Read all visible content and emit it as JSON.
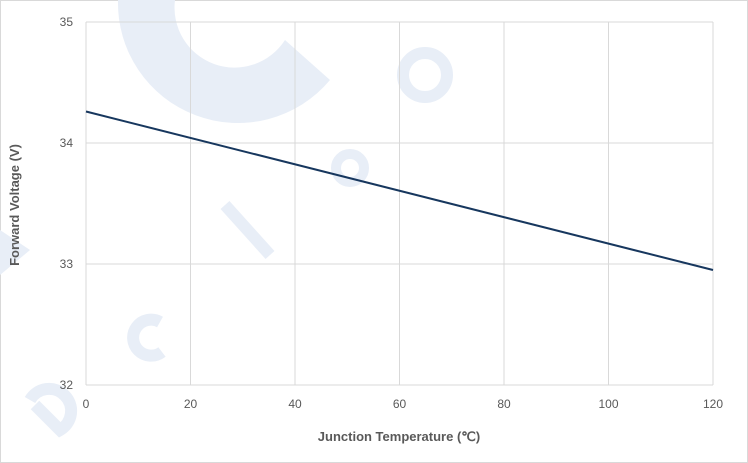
{
  "chart_data": {
    "type": "line",
    "title": "",
    "xlabel": "Junction Temperature (℃)",
    "ylabel": "Forward Voltage (V)",
    "xlim": [
      0,
      120
    ],
    "ylim": [
      32,
      35
    ],
    "x_ticks": [
      "0",
      "20",
      "40",
      "60",
      "80",
      "100",
      "120"
    ],
    "y_ticks": [
      "32",
      "33",
      "34",
      "35"
    ],
    "grid": true,
    "legend": "none",
    "series": [
      {
        "color": "#17375e",
        "x": [
          0,
          120
        ],
        "y": [
          34.26,
          32.95
        ]
      }
    ]
  },
  "colors": {
    "grid": "#d9d9d9",
    "text": "#595959",
    "watermark": "#e8eef7"
  }
}
